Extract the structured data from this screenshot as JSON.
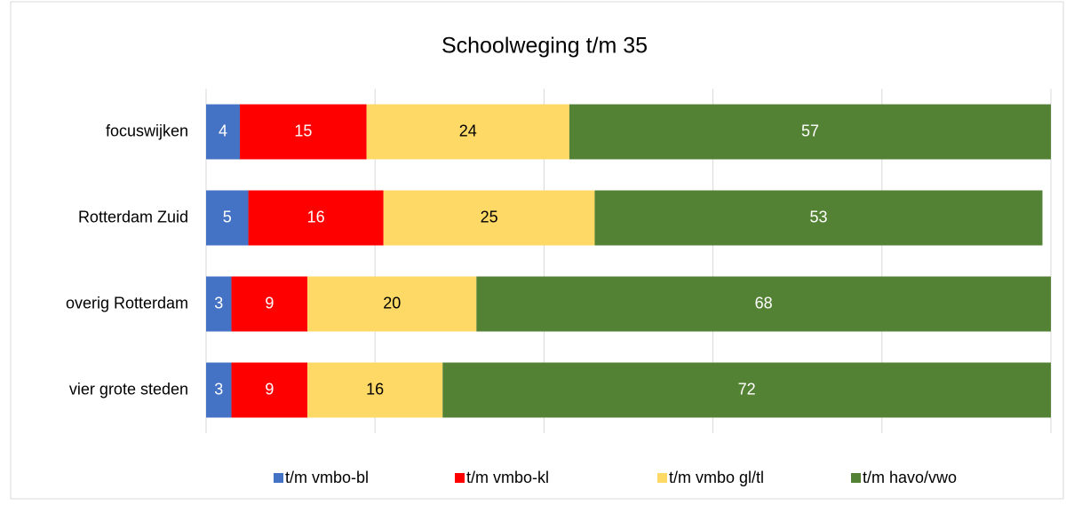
{
  "chart_data": {
    "type": "stacked_barh",
    "title": "Schoolweging t/m 35",
    "categories": [
      "focuswijken",
      "Rotterdam Zuid",
      "overig Rotterdam",
      "vier grote steden"
    ],
    "series": [
      {
        "name": "t/m vmbo-bl",
        "color": "#4472c4",
        "label_color": "#ffffff",
        "values": [
          4,
          5,
          3,
          3
        ]
      },
      {
        "name": "t/m vmbo-kl",
        "color": "#ff0000",
        "label_color": "#ffffff",
        "values": [
          15,
          16,
          9,
          9
        ]
      },
      {
        "name": "t/m vmbo gl/tl",
        "color": "#ffd966",
        "label_color": "#000000",
        "values": [
          24,
          25,
          20,
          16
        ]
      },
      {
        "name": "t/m havo/vwo",
        "color": "#548235",
        "label_color": "#ffffff",
        "values": [
          57,
          53,
          68,
          72
        ]
      }
    ],
    "xlim": [
      0,
      100
    ],
    "xticks": [
      0,
      20,
      40,
      60,
      80,
      100
    ],
    "grid": true,
    "legend": "bottom"
  }
}
